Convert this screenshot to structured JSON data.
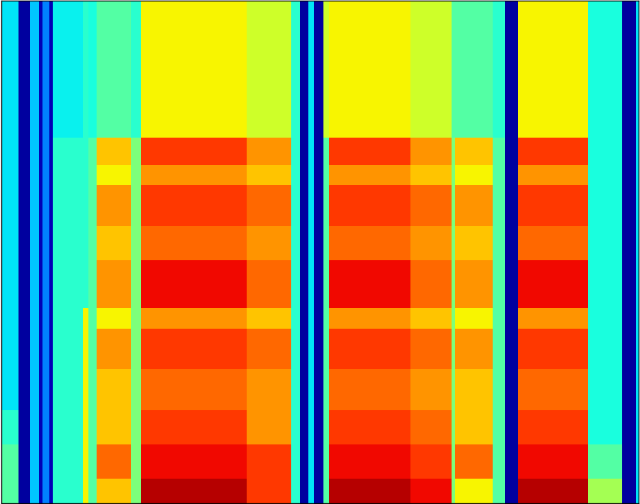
{
  "chart_data": {
    "type": "heatmap",
    "tick_labels": false,
    "x_bins": [
      0,
      25,
      42,
      55,
      60,
      70,
      75,
      120,
      128,
      140,
      190,
      205,
      360,
      425,
      438,
      450,
      458,
      472,
      480,
      600,
      660,
      665,
      720,
      738,
      757,
      860,
      910,
      930,
      934
    ],
    "y_bins": [
      0,
      36,
      86,
      136,
      196,
      256,
      286,
      356,
      406,
      466,
      496,
      536,
      736
    ],
    "xlim": [
      0,
      934
    ],
    "ylim": [
      0,
      736
    ],
    "color_range": [
      0,
      10
    ],
    "cells": [
      [
        4.5,
        0.3,
        3.2,
        0.5,
        2.5,
        0.5,
        4,
        6.5,
        4.5,
        7,
        5,
        9.5,
        8.5,
        4,
        0.3,
        3.5,
        0.3,
        4.5,
        9.5,
        9,
        5,
        6.5,
        4.5,
        0.3,
        9.5,
        5.5,
        0.3,
        3.5
      ],
      [
        4.5,
        0.3,
        3.2,
        0.5,
        2.5,
        0.5,
        4,
        6.5,
        4.5,
        8,
        5,
        9,
        8.5,
        4,
        0.3,
        3.5,
        0.3,
        4.5,
        9,
        8.5,
        5,
        8,
        4.5,
        0.3,
        9,
        4.5,
        0.3,
        3.5
      ],
      [
        4,
        0.3,
        3.2,
        0.5,
        2.5,
        0.5,
        4,
        6.5,
        4.5,
        7,
        5,
        8.5,
        7.5,
        4,
        0.3,
        3.5,
        0.3,
        4.5,
        8.5,
        8,
        5,
        7,
        4.5,
        0.3,
        8.5,
        3.8,
        0.3,
        3.5
      ],
      [
        3.5,
        0.3,
        3.2,
        0.5,
        2.5,
        0.5,
        4,
        6.5,
        4.5,
        7,
        5,
        8,
        7.5,
        4,
        0.3,
        3.5,
        0.3,
        4.5,
        8,
        7.5,
        5,
        7,
        4.5,
        0.3,
        8,
        3.8,
        0.3,
        3.5
      ],
      [
        3.5,
        0.3,
        3.2,
        0.5,
        2.5,
        0.5,
        4,
        6.5,
        4.5,
        7.5,
        5,
        8.5,
        8,
        4,
        0.3,
        3.5,
        0.3,
        4.5,
        8.5,
        8,
        5,
        7.5,
        4.5,
        0.3,
        8.5,
        3.8,
        0.3,
        3.5
      ],
      [
        3.5,
        0.3,
        3.2,
        0.5,
        2.5,
        0.5,
        4,
        6.5,
        4.5,
        6.5,
        5,
        7.5,
        7,
        4,
        0.3,
        3.5,
        0.3,
        4.5,
        7.5,
        7,
        5,
        6.5,
        4.5,
        0.3,
        7.5,
        3.8,
        0.3,
        3.5
      ],
      [
        3.5,
        0.3,
        3.2,
        0.5,
        2.5,
        0.5,
        4,
        4,
        4.5,
        7.5,
        5,
        9,
        8,
        4,
        0.3,
        3.5,
        0.3,
        4.5,
        9,
        8,
        5,
        7.5,
        4.5,
        0.3,
        9,
        3.8,
        0.3,
        3.5
      ],
      [
        3.5,
        0.3,
        3.2,
        0.5,
        2.5,
        0.5,
        4,
        4,
        4.5,
        7,
        5,
        8,
        7.5,
        4,
        0.3,
        3.5,
        0.3,
        4.5,
        8,
        7.5,
        5,
        7,
        4.5,
        0.3,
        8,
        3.8,
        0.3,
        3.5
      ],
      [
        3.5,
        0.3,
        3.2,
        0.5,
        2.5,
        0.5,
        4,
        4,
        4.5,
        7.5,
        5,
        8.5,
        8,
        4,
        0.3,
        3.5,
        0.3,
        4.5,
        8.5,
        8,
        5,
        7.5,
        4.5,
        0.3,
        8.5,
        3.8,
        0.3,
        3.5
      ],
      [
        3.5,
        0.3,
        3.2,
        0.5,
        2.5,
        0.5,
        4,
        4,
        4.5,
        6.5,
        5,
        7.5,
        7,
        4,
        0.3,
        3.5,
        0.3,
        4.5,
        7.5,
        7,
        5,
        6.5,
        4.5,
        0.3,
        7.5,
        3.8,
        0.3,
        3.5
      ],
      [
        3.5,
        0.3,
        3.2,
        0.5,
        2.5,
        0.5,
        4,
        4,
        4.5,
        7,
        5,
        8.5,
        7.5,
        4,
        0.3,
        3.5,
        0.3,
        4.5,
        8.5,
        7.5,
        5,
        7,
        4.5,
        0.3,
        8.5,
        3.8,
        0.3,
        3.5
      ],
      [
        3.5,
        0.3,
        3.2,
        0.5,
        2.5,
        0.5,
        3.6,
        4,
        3.8,
        4.5,
        4,
        6.5,
        6,
        4,
        0.3,
        3.5,
        0.3,
        6,
        6.5,
        6,
        4.5,
        4.5,
        4,
        0.3,
        6.5,
        3.8,
        0.3,
        3.5
      ]
    ]
  }
}
